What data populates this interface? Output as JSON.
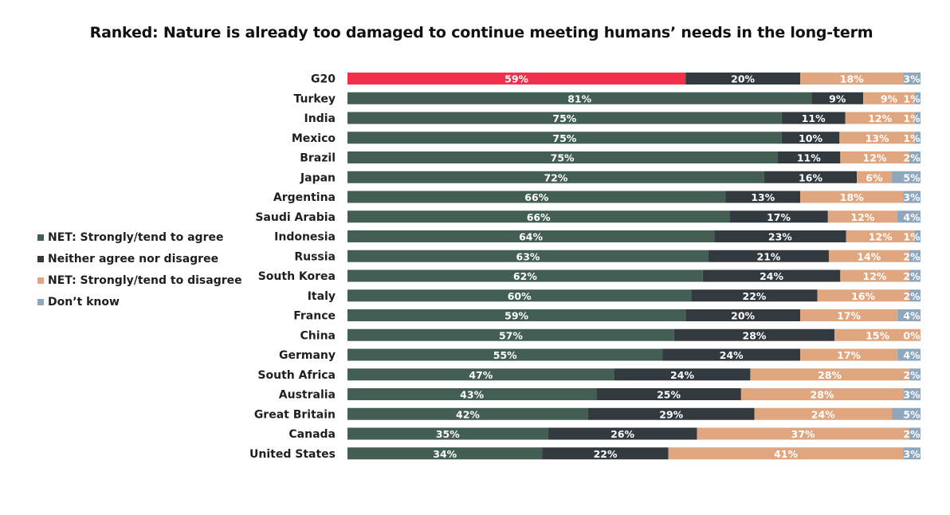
{
  "chart_data": {
    "type": "bar",
    "orientation": "horizontal",
    "stacked": true,
    "percent_stacked": true,
    "title": "Ranked: Nature is already too damaged to continue meeting humans’ needs in the long-term",
    "xlabel": "",
    "ylabel": "",
    "legend_position": "left",
    "categories": [
      "G20",
      "Turkey",
      "India",
      "Mexico",
      "Brazil",
      "Japan",
      "Argentina",
      "Saudi Arabia",
      "Indonesia",
      "Russia",
      "South Korea",
      "Italy",
      "France",
      "China",
      "Germany",
      "South Africa",
      "Australia",
      "Great Britain",
      "Canada",
      "United States"
    ],
    "series": [
      {
        "name": "NET: Strongly/tend to agree",
        "color": "#435e52",
        "values": [
          59,
          81,
          75,
          75,
          75,
          72,
          66,
          66,
          64,
          63,
          62,
          60,
          59,
          57,
          55,
          47,
          43,
          42,
          35,
          34
        ]
      },
      {
        "name": "Neither agree nor disagree",
        "color": "#323a40",
        "values": [
          20,
          9,
          11,
          10,
          11,
          16,
          13,
          17,
          23,
          21,
          24,
          22,
          20,
          28,
          24,
          24,
          25,
          29,
          26,
          22
        ]
      },
      {
        "name": "NET: Strongly/tend to disagree",
        "color": "#dfa67f",
        "values": [
          18,
          9,
          12,
          13,
          12,
          6,
          18,
          12,
          12,
          14,
          12,
          16,
          17,
          15,
          17,
          28,
          28,
          24,
          37,
          41
        ]
      },
      {
        "name": "Don’t know",
        "color": "#8fa7bd",
        "values": [
          3,
          1,
          1,
          1,
          2,
          5,
          3,
          4,
          1,
          2,
          2,
          2,
          4,
          0,
          4,
          2,
          3,
          5,
          2,
          3
        ]
      }
    ],
    "highlight": {
      "category": "G20",
      "series": "NET: Strongly/tend to agree",
      "color": "#f3304b"
    },
    "value_suffix": "%"
  },
  "legend": [
    {
      "label": "NET: Strongly/tend to agree",
      "color": "#435e52"
    },
    {
      "label": "Neither agree nor disagree",
      "color": "#323a40"
    },
    {
      "label": "NET: Strongly/tend to disagree",
      "color": "#dfa67f"
    },
    {
      "label": "Don’t know",
      "color": "#8fa7bd"
    }
  ]
}
